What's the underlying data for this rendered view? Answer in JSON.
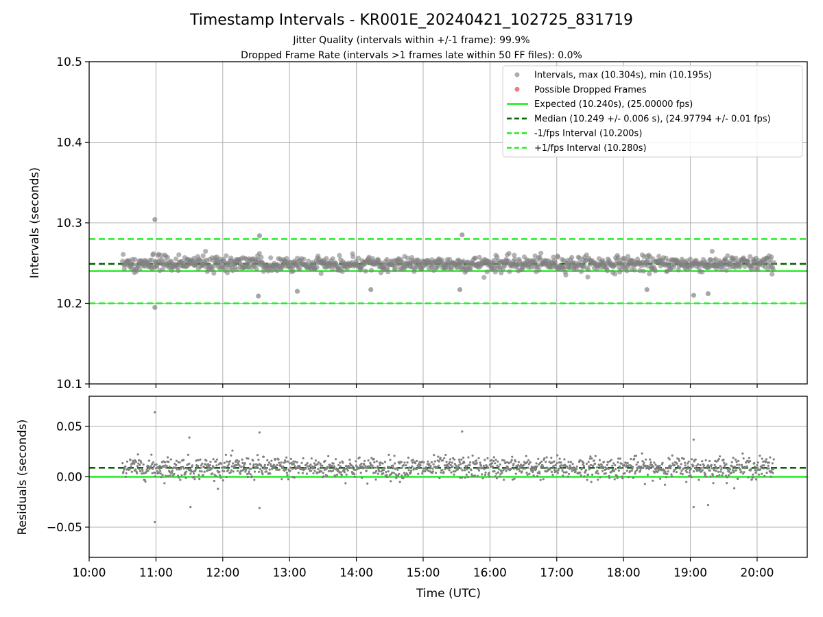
{
  "figure": {
    "title": "Timestamp Intervals - KR001E_20240421_102725_831719",
    "subtitle_1": "Jitter Quality (intervals within +/-1 frame): 99.9%",
    "subtitle_2": "Dropped Frame Rate (intervals >1 frames late within 50 FF files): 0.0%"
  },
  "colors": {
    "points": "#808080",
    "dropped": "#e8343d",
    "expected": "#1eee1e",
    "median": "#006400",
    "bounds": "#1eee1e",
    "grid": "#b0b0b0"
  },
  "chart_data": [
    {
      "type": "scatter",
      "panel": "top",
      "title": "",
      "xlabel": "",
      "ylabel": "Intervals (seconds)",
      "x_range": [
        "10:00",
        "20:45"
      ],
      "ylim": [
        10.1,
        10.5
      ],
      "yticks": [
        "10.1",
        "10.2",
        "10.3",
        "10.4",
        "10.5"
      ],
      "grid": true,
      "legend_position": "top-right",
      "legend": [
        "Intervals, max (10.304s), min (10.195s)",
        "Possible Dropped Frames",
        "Expected (10.240s), (25.00000 fps)",
        "Median (10.249 +/- 0.006 s), (24.97794 +/- 0.01 fps)",
        "-1/fps Interval (10.200s)",
        "+1/fps Interval (10.280s)"
      ],
      "reference_lines": {
        "expected": 10.24,
        "median": 10.249,
        "minus_one_frame": 10.2,
        "plus_one_frame": 10.28
      },
      "series": [
        {
          "name": "Intervals, max (10.304s), min (10.195s)",
          "time_range": [
            "10:30",
            "20:15"
          ],
          "center": 10.249,
          "spread": 0.006,
          "notable_points": [
            {
              "x": "10:59",
              "y": 10.304
            },
            {
              "x": "10:59",
              "y": 10.195
            },
            {
              "x": "12:33",
              "y": 10.284
            },
            {
              "x": "15:35",
              "y": 10.285
            },
            {
              "x": "12:32",
              "y": 10.209
            },
            {
              "x": "19:03",
              "y": 10.21
            },
            {
              "x": "19:16",
              "y": 10.212
            },
            {
              "x": "13:07",
              "y": 10.215
            },
            {
              "x": "15:33",
              "y": 10.217
            },
            {
              "x": "14:13",
              "y": 10.217
            },
            {
              "x": "18:21",
              "y": 10.217
            }
          ]
        },
        {
          "name": "Possible Dropped Frames",
          "points": []
        }
      ]
    },
    {
      "type": "scatter",
      "panel": "bottom",
      "title": "",
      "xlabel": "Time (UTC)",
      "ylabel": "Residuals (seconds)",
      "x_range": [
        "10:00",
        "20:45"
      ],
      "xticks": [
        "10:00",
        "11:00",
        "12:00",
        "13:00",
        "14:00",
        "15:00",
        "16:00",
        "17:00",
        "18:00",
        "19:00",
        "20:00"
      ],
      "ylim": [
        -0.08,
        0.08
      ],
      "yticks": [
        "−0.05",
        "0.00",
        "0.05"
      ],
      "grid": true,
      "reference_lines": {
        "zero": 0.0,
        "median_residual": 0.009
      },
      "series": [
        {
          "name": "Residuals",
          "time_range": [
            "10:30",
            "20:15"
          ],
          "center": 0.009,
          "spread": 0.006,
          "notable_points": [
            {
              "x": "10:59",
              "y": 0.064
            },
            {
              "x": "10:59",
              "y": -0.045
            },
            {
              "x": "15:35",
              "y": 0.045
            },
            {
              "x": "12:33",
              "y": 0.044
            },
            {
              "x": "11:30",
              "y": 0.039
            },
            {
              "x": "19:03",
              "y": 0.037
            },
            {
              "x": "12:33",
              "y": -0.031
            },
            {
              "x": "19:03",
              "y": -0.03
            },
            {
              "x": "11:31",
              "y": -0.03
            },
            {
              "x": "19:16",
              "y": -0.028
            }
          ]
        }
      ]
    }
  ]
}
